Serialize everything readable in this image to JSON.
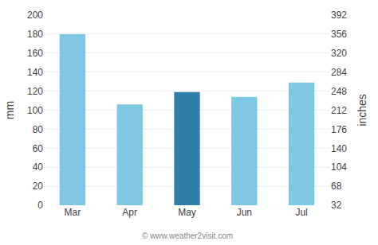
{
  "chart_data": {
    "type": "bar",
    "categories": [
      "Mar",
      "Apr",
      "May",
      "Jun",
      "Jul"
    ],
    "values": [
      180,
      106,
      119,
      114,
      129
    ],
    "colors": [
      "#7ec8e3",
      "#7ec8e3",
      "#2e7ea8",
      "#7ec8e3",
      "#7ec8e3"
    ],
    "ylabel": "mm",
    "y2label": "inches",
    "ylim": [
      0,
      200
    ],
    "yticks": [
      0,
      20,
      40,
      60,
      80,
      100,
      120,
      140,
      160,
      180,
      200
    ],
    "y2lim": [
      32,
      392
    ],
    "y2ticks": [
      32,
      68,
      104,
      140,
      176,
      212,
      248,
      284,
      320,
      356,
      392
    ],
    "grid": true,
    "annotations": [
      "© www.weather2visit.com"
    ]
  }
}
